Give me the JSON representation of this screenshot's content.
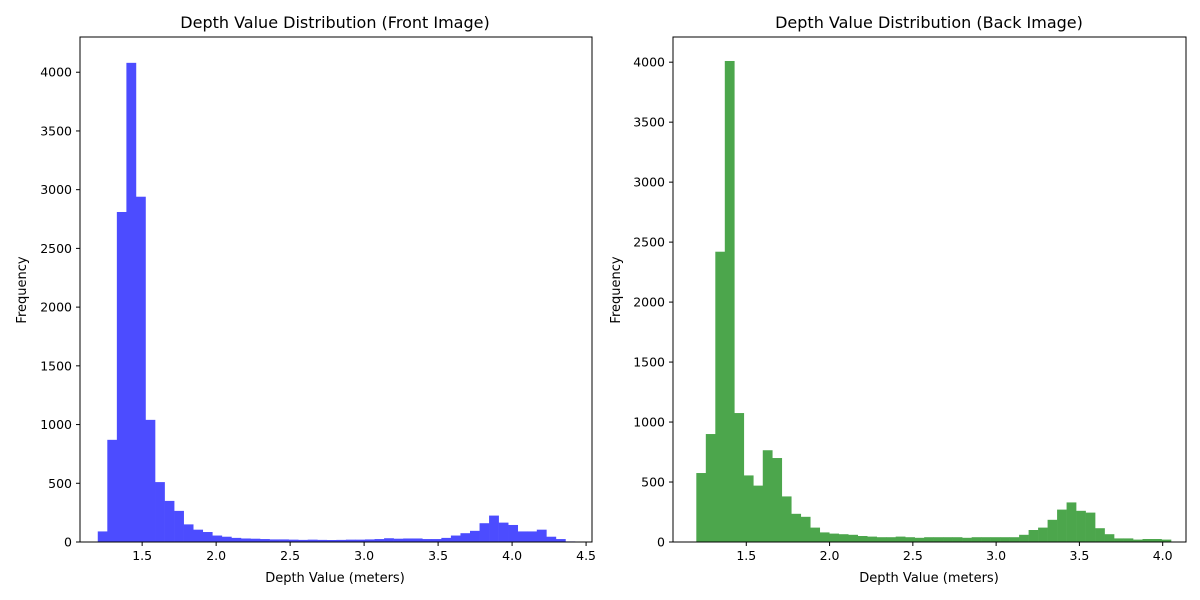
{
  "chart_data": [
    {
      "type": "bar",
      "title": "Depth Value Distribution (Front Image)",
      "xlabel": "Depth Value (meters)",
      "ylabel": "Frequency",
      "xlim": [
        1.08,
        4.54
      ],
      "ylim": [
        0,
        4300
      ],
      "xticks": [
        1.5,
        2.0,
        2.5,
        3.0,
        3.5,
        4.0,
        4.5
      ],
      "xtick_labels": [
        "1.5",
        "2.0",
        "2.5",
        "3.0",
        "3.5",
        "4.0",
        "4.5"
      ],
      "yticks": [
        0,
        500,
        1000,
        1500,
        2000,
        2500,
        3000,
        3500,
        4000
      ],
      "ytick_labels": [
        "0",
        "500",
        "1000",
        "1500",
        "2000",
        "2500",
        "3000",
        "3500",
        "4000"
      ],
      "bin_start": 1.2,
      "bin_width": 0.0645,
      "color": "#4c4cff",
      "values": [
        90,
        870,
        2810,
        4080,
        2940,
        1040,
        510,
        350,
        265,
        150,
        105,
        85,
        55,
        45,
        35,
        30,
        28,
        25,
        22,
        22,
        20,
        18,
        20,
        18,
        17,
        18,
        20,
        20,
        22,
        25,
        32,
        28,
        30,
        30,
        25,
        25,
        35,
        55,
        75,
        95,
        160,
        225,
        165,
        145,
        90,
        90,
        105,
        45,
        25,
        5
      ]
    },
    {
      "type": "bar",
      "title": "Depth Value Distribution (Back Image)",
      "xlabel": "Depth Value (meters)",
      "ylabel": "Frequency",
      "xlim": [
        1.06,
        4.14
      ],
      "ylim": [
        0,
        4210
      ],
      "xticks": [
        1.5,
        2.0,
        2.5,
        3.0,
        3.5,
        4.0
      ],
      "xtick_labels": [
        "1.5",
        "2.0",
        "2.5",
        "3.0",
        "3.5",
        "4.0"
      ],
      "yticks": [
        0,
        500,
        1000,
        1500,
        2000,
        2500,
        3000,
        3500,
        4000
      ],
      "ytick_labels": [
        "0",
        "500",
        "1000",
        "1500",
        "2000",
        "2500",
        "3000",
        "3500",
        "4000"
      ],
      "bin_start": 1.2,
      "bin_width": 0.057,
      "color": "#4ca64c",
      "values": [
        575,
        900,
        2420,
        4010,
        1075,
        555,
        470,
        765,
        700,
        380,
        235,
        210,
        120,
        80,
        70,
        65,
        60,
        50,
        45,
        40,
        40,
        45,
        40,
        35,
        40,
        40,
        40,
        40,
        35,
        40,
        40,
        40,
        40,
        40,
        60,
        100,
        120,
        185,
        270,
        330,
        260,
        245,
        115,
        65,
        30,
        30,
        20,
        25,
        25,
        20
      ]
    }
  ]
}
